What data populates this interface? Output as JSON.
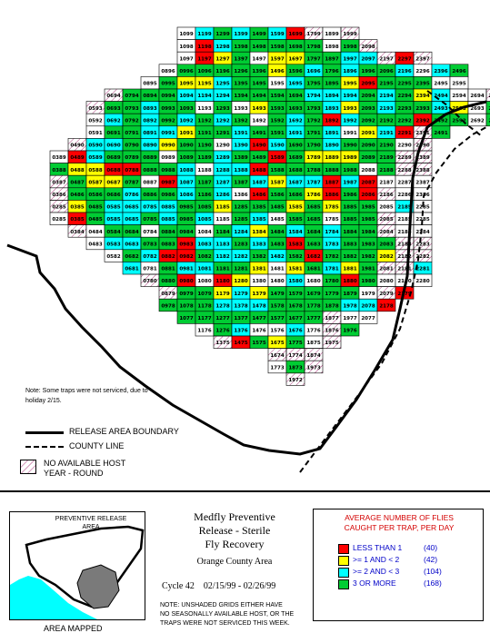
{
  "colors": {
    "less_than_1": "#ff0000",
    "ge1_lt2": "#ffff00",
    "ge2_lt3": "#00ffff",
    "ge3": "#00cc33",
    "unshaded": "#ffffff",
    "hatch": "#b04080"
  },
  "grid": {
    "rows": [
      {
        "r": 0,
        "start": 2,
        "end": 11,
        "num_base": 1099,
        "hatch_from": 9
      },
      {
        "r": 1,
        "start": 2,
        "end": 12,
        "num_base": 1098
      },
      {
        "r": 2,
        "start": 2,
        "end": 15,
        "num_base": 1097
      },
      {
        "r": 3,
        "start": 1,
        "end": 17,
        "num_base": 896,
        "offset_num": true
      },
      {
        "r": 4,
        "start": 0,
        "end": 17,
        "num_base": 895,
        "offset_num": true
      },
      {
        "r": 5,
        "start": -2,
        "end": 19,
        "num_base": 694,
        "offset_num": true
      },
      {
        "r": 6,
        "start": -3,
        "end": 20,
        "num_base": 593,
        "offset_num": true
      },
      {
        "r": 7,
        "start": -3,
        "end": 20,
        "num_base": 592,
        "offset_num": true
      },
      {
        "r": 8,
        "start": -3,
        "end": 16,
        "num_base": 591,
        "offset_num": true
      },
      {
        "r": 9,
        "start": -4,
        "end": 15,
        "num_base": 490,
        "offset_num": true
      },
      {
        "r": 10,
        "start": -5,
        "end": 15,
        "num_base": 389,
        "offset_num": true
      },
      {
        "r": 11,
        "start": -5,
        "end": 15,
        "num_base": 388,
        "offset_num": true
      },
      {
        "r": 12,
        "start": -5,
        "end": 15,
        "num_base": 387,
        "offset_num": true
      },
      {
        "r": 13,
        "start": -5,
        "end": 15,
        "num_base": 386,
        "offset_num": true
      },
      {
        "r": 14,
        "start": -5,
        "end": 15,
        "num_base": 285,
        "offset_num": true
      },
      {
        "r": 15,
        "start": -5,
        "end": 15,
        "num_base": 285,
        "offset_num": true
      },
      {
        "r": 16,
        "start": -4,
        "end": 15,
        "num_base": 384,
        "offset_num": true
      },
      {
        "r": 17,
        "start": -3,
        "end": 15,
        "num_base": 483,
        "offset_num": true
      },
      {
        "r": 18,
        "start": -2,
        "end": 15,
        "num_base": 582,
        "offset_num": true
      },
      {
        "r": 19,
        "start": -1,
        "end": 15,
        "num_base": 681,
        "offset_num": true
      },
      {
        "r": 20,
        "start": 0,
        "end": 15,
        "num_base": 780,
        "offset_num": true
      },
      {
        "r": 21,
        "start": 1,
        "end": 14,
        "num_base": 879,
        "offset_num": true
      },
      {
        "r": 22,
        "start": 1,
        "end": 13,
        "num_base": 978,
        "offset_num": true
      },
      {
        "r": 23,
        "start": 2,
        "end": 12,
        "num_base": 1077,
        "offset_num": true
      },
      {
        "r": 24,
        "start": 3,
        "end": 11,
        "num_base": 1176,
        "offset_num": true
      },
      {
        "r": 25,
        "start": 4,
        "end": 10,
        "num_base": 1375,
        "offset_num": true
      },
      {
        "r": 26,
        "start": 7,
        "end": 9,
        "num_base": 1674,
        "offset_num": true
      },
      {
        "r": 27,
        "start": 7,
        "end": 9,
        "num_base": 1773,
        "offset_num": true
      },
      {
        "r": 28,
        "start": 8,
        "end": 8,
        "num_base": 1972,
        "offset_num": true
      }
    ]
  },
  "map_labels": {
    "note_traps": "Note: Some traps were not serviced, due to holiday 2/15."
  },
  "legend_lines": {
    "boundary": "RELEASE AREA BOUNDARY",
    "county": "COUNTY LINE",
    "no_host_line1": "NO AVAILABLE HOST",
    "no_host_line2": "YEAR - ROUND"
  },
  "inset": {
    "title_line1": "PREVENTIVE RELEASE",
    "title_line2": "AREA",
    "caption": "AREA MAPPED"
  },
  "title": {
    "line1": "Medfly Preventive",
    "line2": "Release - Sterile",
    "line3": "Fly Recovery",
    "area": "Orange County Area",
    "cycle": "Cycle 42",
    "dates": "02/15/99 - 02/26/99"
  },
  "note_bottom": {
    "line1": "NOTE: UNSHADED GRIDS EITHER HAVE",
    "line2": "NO SEASONALLY AVAILABLE HOST, OR THE",
    "line3": "TRAPS WERE NOT SERVICED THIS WEEK."
  },
  "legend": {
    "title_line1": "AVERAGE NUMBER OF FLIES",
    "title_line2": "CAUGHT PER TRAP, PER DAY",
    "items": [
      {
        "label": "LESS THAN 1",
        "count": "(40)",
        "color": "#ff0000"
      },
      {
        "label": ">= 1 AND < 2",
        "count": "(42)",
        "color": "#ffff00"
      },
      {
        "label": ">= 2 AND < 3",
        "count": "(104)",
        "color": "#00ffff"
      },
      {
        "label": "3 OR MORE",
        "count": "(168)",
        "color": "#00cc33"
      }
    ]
  }
}
